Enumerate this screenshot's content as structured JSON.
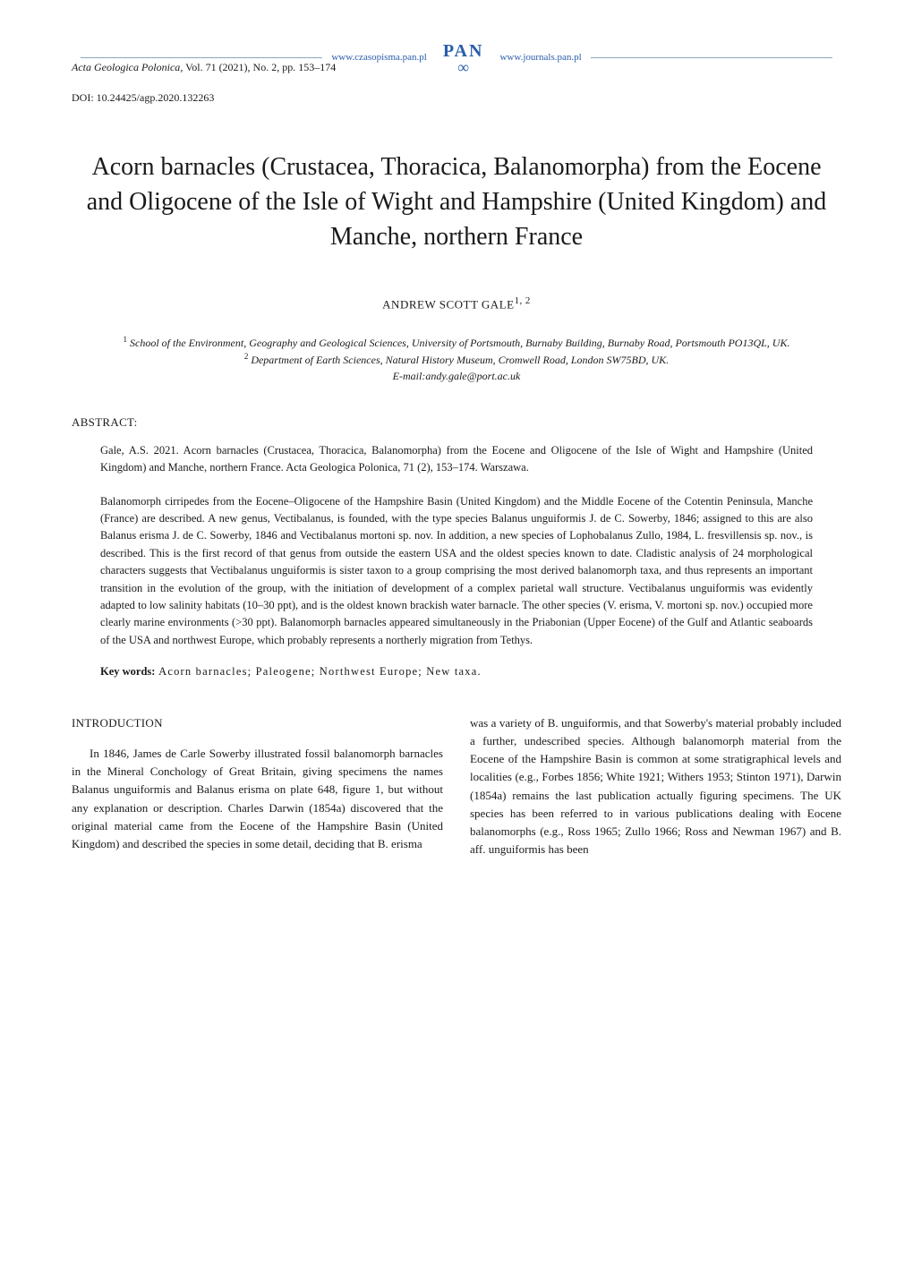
{
  "header": {
    "left_url": "www.czasopisma.pan.pl",
    "right_url": "www.journals.pan.pl",
    "pan_label": "PAN",
    "line_color": "#88aabb",
    "url_color": "#2a5caa"
  },
  "journal": {
    "name": "Acta Geologica Polonica",
    "vol_label": "Vol. 71 (2021), No. 2, pp. 153–174",
    "doi_label": "DOI:",
    "doi_value": "10.24425/agp.2020.132263"
  },
  "title": "Acorn barnacles (Crustacea, Thoracica, Balanomorpha) from the Eocene and Oligocene of the Isle of Wight and Hampshire (United Kingdom) and Manche, northern France",
  "author": {
    "name": "ANDREW SCOTT GALE",
    "sup": "1, 2"
  },
  "affiliations": {
    "affil1_sup": "1",
    "affil1": " School of the Environment, Geography and Geological Sciences, University of Portsmouth, Burnaby Building, Burnaby Road, Portsmouth PO13QL, UK.",
    "affil2_sup": "2",
    "affil2": " Department of Earth Sciences, Natural History Museum, Cromwell Road, London SW75BD, UK.",
    "email": "E-mail:andy.gale@port.ac.uk"
  },
  "abstract": {
    "heading": "ABSTRACT:",
    "citation": "Gale, A.S. 2021. Acorn barnacles (Crustacea, Thoracica, Balanomorpha) from the Eocene and Oligocene of the Isle of Wight and Hampshire (United Kingdom) and Manche, northern France. Acta Geologica Polonica, 71 (2), 153–174. Warszawa.",
    "body": "Balanomorph cirripedes from the Eocene–Oligocene of the Hampshire Basin (United Kingdom) and the Middle Eocene of the Cotentin Peninsula, Manche (France) are described. A new genus, Vectibalanus, is founded, with the type species Balanus unguiformis J. de C. Sowerby, 1846; assigned to this are also Balanus erisma J. de C. Sowerby, 1846 and Vectibalanus mortoni sp. nov. In addition, a new species of Lophobalanus Zullo, 1984, L. fresvillensis sp. nov., is described. This is the first record of that genus from outside the eastern USA and the oldest species known to date. Cladistic analysis of 24 morphological characters suggests that Vectibalanus unguiformis is sister taxon to a group comprising the most derived balanomorph taxa, and thus represents an important transition in the evolution of the group, with the initiation of development of a complex parietal wall structure. Vectibalanus unguiformis was evidently adapted to low salinity habitats (10–30 ppt), and is the oldest known brackish water barnacle. The other species (V. erisma, V. mortoni sp. nov.) occupied more clearly marine environments (>30 ppt). Balanomorph barnacles appeared simultaneously in the Priabonian (Upper Eocene) of the Gulf and Atlantic seaboards of the USA and northwest Europe, which probably represents a northerly migration from Tethys."
  },
  "keywords": {
    "label": "Key words:",
    "values": " Acorn barnacles; Paleogene; Northwest Europe; New taxa."
  },
  "intro": {
    "heading": "INTRODUCTION",
    "col1": "In 1846, James de Carle Sowerby illustrated fossil balanomorph barnacles in the Mineral Conchology of Great Britain, giving specimens the names Balanus unguiformis and Balanus erisma on plate 648, figure 1, but without any explanation or description. Charles Darwin (1854a) discovered that the original material came from the Eocene of the Hampshire Basin (United Kingdom) and described the species in some detail, deciding that B. erisma",
    "col2": "was a variety of B. unguiformis, and that Sowerby's material probably included a further, undescribed species. Although balanomorph material from the Eocene of the Hampshire Basin is common at some stratigraphical levels and localities (e.g., Forbes 1856; White 1921; Withers 1953; Stinton 1971), Darwin (1854a) remains the last publication actually figuring specimens. The UK species has been referred to in various publications dealing with Eocene balanomorphs (e.g., Ross 1965; Zullo 1966; Ross and Newman 1967) and B. aff. unguiformis has been"
  },
  "styles": {
    "body_width": 1020,
    "body_padding_h": 80,
    "body_padding_top": 40,
    "title_fontsize": 28,
    "author_fontsize": 13,
    "affil_fontsize": 12,
    "abstract_fontsize": 12.5,
    "body_fontsize": 13,
    "line_height": 1.55,
    "background_color": "#ffffff",
    "text_color": "#1a1a1a",
    "font_family": "Georgia, Times New Roman, serif",
    "column_gap": 30,
    "abstract_indent": 32
  }
}
